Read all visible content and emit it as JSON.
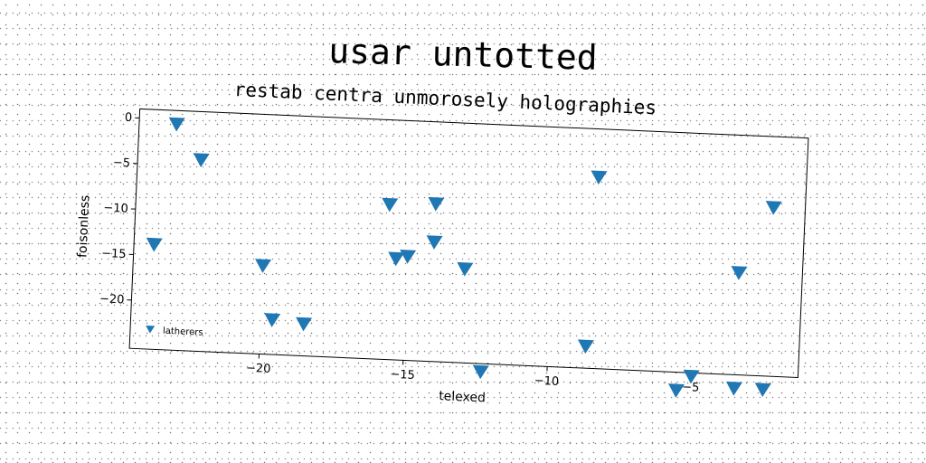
{
  "chart_data": {
    "type": "scatter",
    "title": "usar untotted",
    "subtitle": "restab centra unmorosely holographies",
    "xlabel": "telexed",
    "ylabel": "foisonless",
    "xlim": [
      -24.5,
      -1.3
    ],
    "ylim": [
      -25.3,
      1.0
    ],
    "xticks": [
      -20,
      -15,
      -10,
      -5
    ],
    "xtick_labels": [
      "−20",
      "−15",
      "−10",
      "−5"
    ],
    "yticks": [
      0,
      -5,
      -10,
      -15,
      -20
    ],
    "ytick_labels": [
      "0",
      "−5",
      "−10",
      "−15",
      "−20"
    ],
    "grid": false,
    "legend": "lower-left",
    "marker": "triangle-down",
    "series": [
      {
        "name": "latherers",
        "color": "#1f77b4",
        "points": [
          {
            "x": -23.2,
            "y": -0.5
          },
          {
            "x": -22.3,
            "y": -4.3
          },
          {
            "x": -23.8,
            "y": -13.8
          },
          {
            "x": -20.0,
            "y": -15.6
          },
          {
            "x": -19.6,
            "y": -21.5
          },
          {
            "x": -18.5,
            "y": -21.8
          },
          {
            "x": -15.7,
            "y": -8.3
          },
          {
            "x": -14.1,
            "y": -8.0
          },
          {
            "x": -14.1,
            "y": -12.2
          },
          {
            "x": -15.4,
            "y": -14.2
          },
          {
            "x": -15.0,
            "y": -13.9
          },
          {
            "x": -13.0,
            "y": -15.0
          },
          {
            "x": -12.3,
            "y": -26.2
          },
          {
            "x": -8.5,
            "y": -4.3
          },
          {
            "x": -8.7,
            "y": -22.9
          },
          {
            "x": -5.5,
            "y": -27.3
          },
          {
            "x": -5.0,
            "y": -25.7
          },
          {
            "x": -3.5,
            "y": -14.1
          },
          {
            "x": -3.5,
            "y": -26.8
          },
          {
            "x": -2.4,
            "y": -6.8
          },
          {
            "x": -2.5,
            "y": -26.8
          }
        ]
      }
    ]
  }
}
